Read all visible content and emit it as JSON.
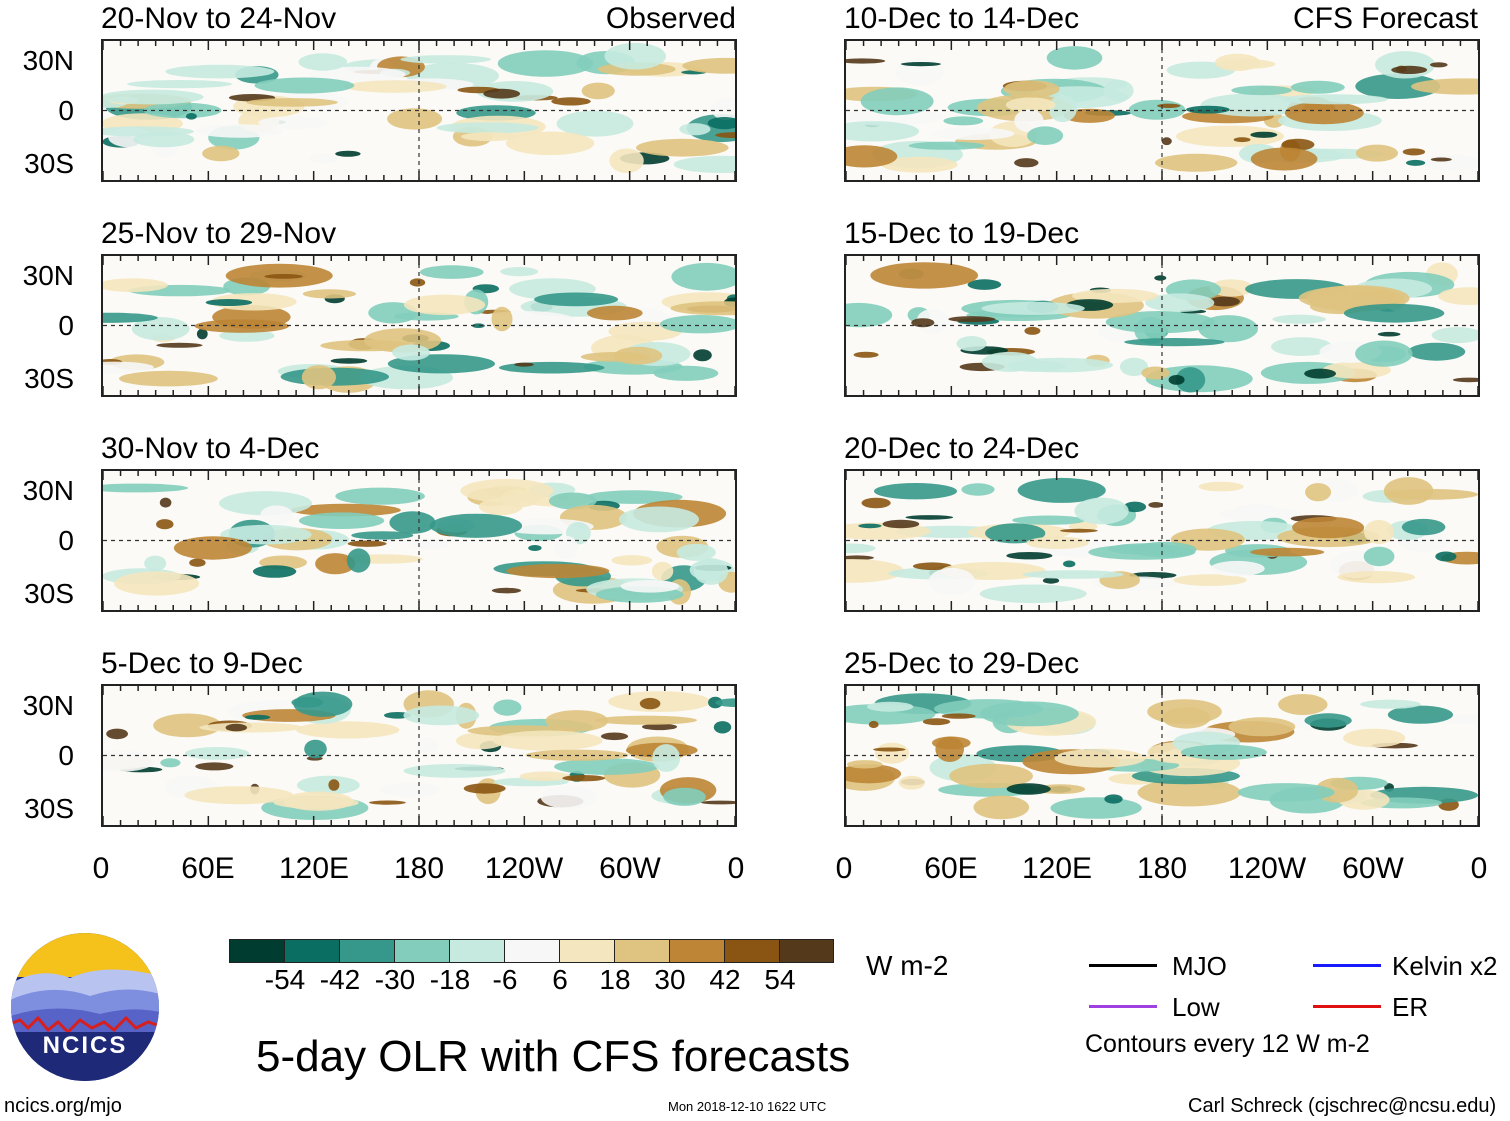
{
  "observed_label": "Observed",
  "forecast_label": "CFS Forecast",
  "main_title": "5-day OLR with CFS forecasts",
  "units": "W m-2",
  "website": "ncics.org/mjo",
  "timestamp": "Mon 2018-12-10 1622 UTC",
  "author": "Carl Schreck (cjschrec@ncsu.edu)",
  "contour_note": "Contours every 12 W m-2",
  "logo_text": "NCICS",
  "lat_labels": [
    "30N",
    "0",
    "30S"
  ],
  "lon_labels": [
    "0",
    "60E",
    "120E",
    "180",
    "120W",
    "60W",
    "0"
  ],
  "legend": [
    {
      "name": "MJO",
      "color": "#000000"
    },
    {
      "name": "Kelvin x2",
      "color": "#1a1aff"
    },
    {
      "name": "Low",
      "color": "#a040e0"
    },
    {
      "name": "ER",
      "color": "#e01010"
    }
  ],
  "colorbar": {
    "colors": [
      "#003d30",
      "#0a6e62",
      "#35988a",
      "#82cdbb",
      "#c6eae0",
      "#f7f7f7",
      "#f4e6be",
      "#dfc380",
      "#bd8535",
      "#8a5512",
      "#54391b"
    ],
    "ticks": [
      "-54",
      "-42",
      "-30",
      "-18",
      "-6",
      "6",
      "18",
      "30",
      "42",
      "54"
    ]
  },
  "chart_data": {
    "type": "heatmap",
    "title": "5-day OLR with CFS forecasts",
    "variable": "OLR anomaly",
    "units": "W m-2",
    "xlabel_ticks": [
      "0",
      "60E",
      "120E",
      "180",
      "120W",
      "60W",
      "0"
    ],
    "ylabel_ticks": [
      "30N",
      "0",
      "30S"
    ],
    "color_levels": [
      -54,
      -42,
      -30,
      -18,
      -6,
      6,
      18,
      30,
      42,
      54
    ],
    "panels_observed": [
      {
        "period": "20-Nov to 24-Nov",
        "source": "Observed"
      },
      {
        "period": "25-Nov to 29-Nov",
        "source": "Observed"
      },
      {
        "period": "30-Nov to 4-Dec",
        "source": "Observed"
      },
      {
        "period": "5-Dec to 9-Dec",
        "source": "Observed"
      }
    ],
    "panels_forecast": [
      {
        "period": "10-Dec to 14-Dec",
        "source": "CFS Forecast"
      },
      {
        "period": "15-Dec to 19-Dec",
        "source": "CFS Forecast"
      },
      {
        "period": "20-Dec to 24-Dec",
        "source": "CFS Forecast"
      },
      {
        "period": "25-Dec to 29-Dec",
        "source": "CFS Forecast"
      }
    ],
    "contours": [
      "MJO",
      "Kelvin x2",
      "Low",
      "ER"
    ],
    "contour_interval": "Contours every 12 W m-2"
  }
}
